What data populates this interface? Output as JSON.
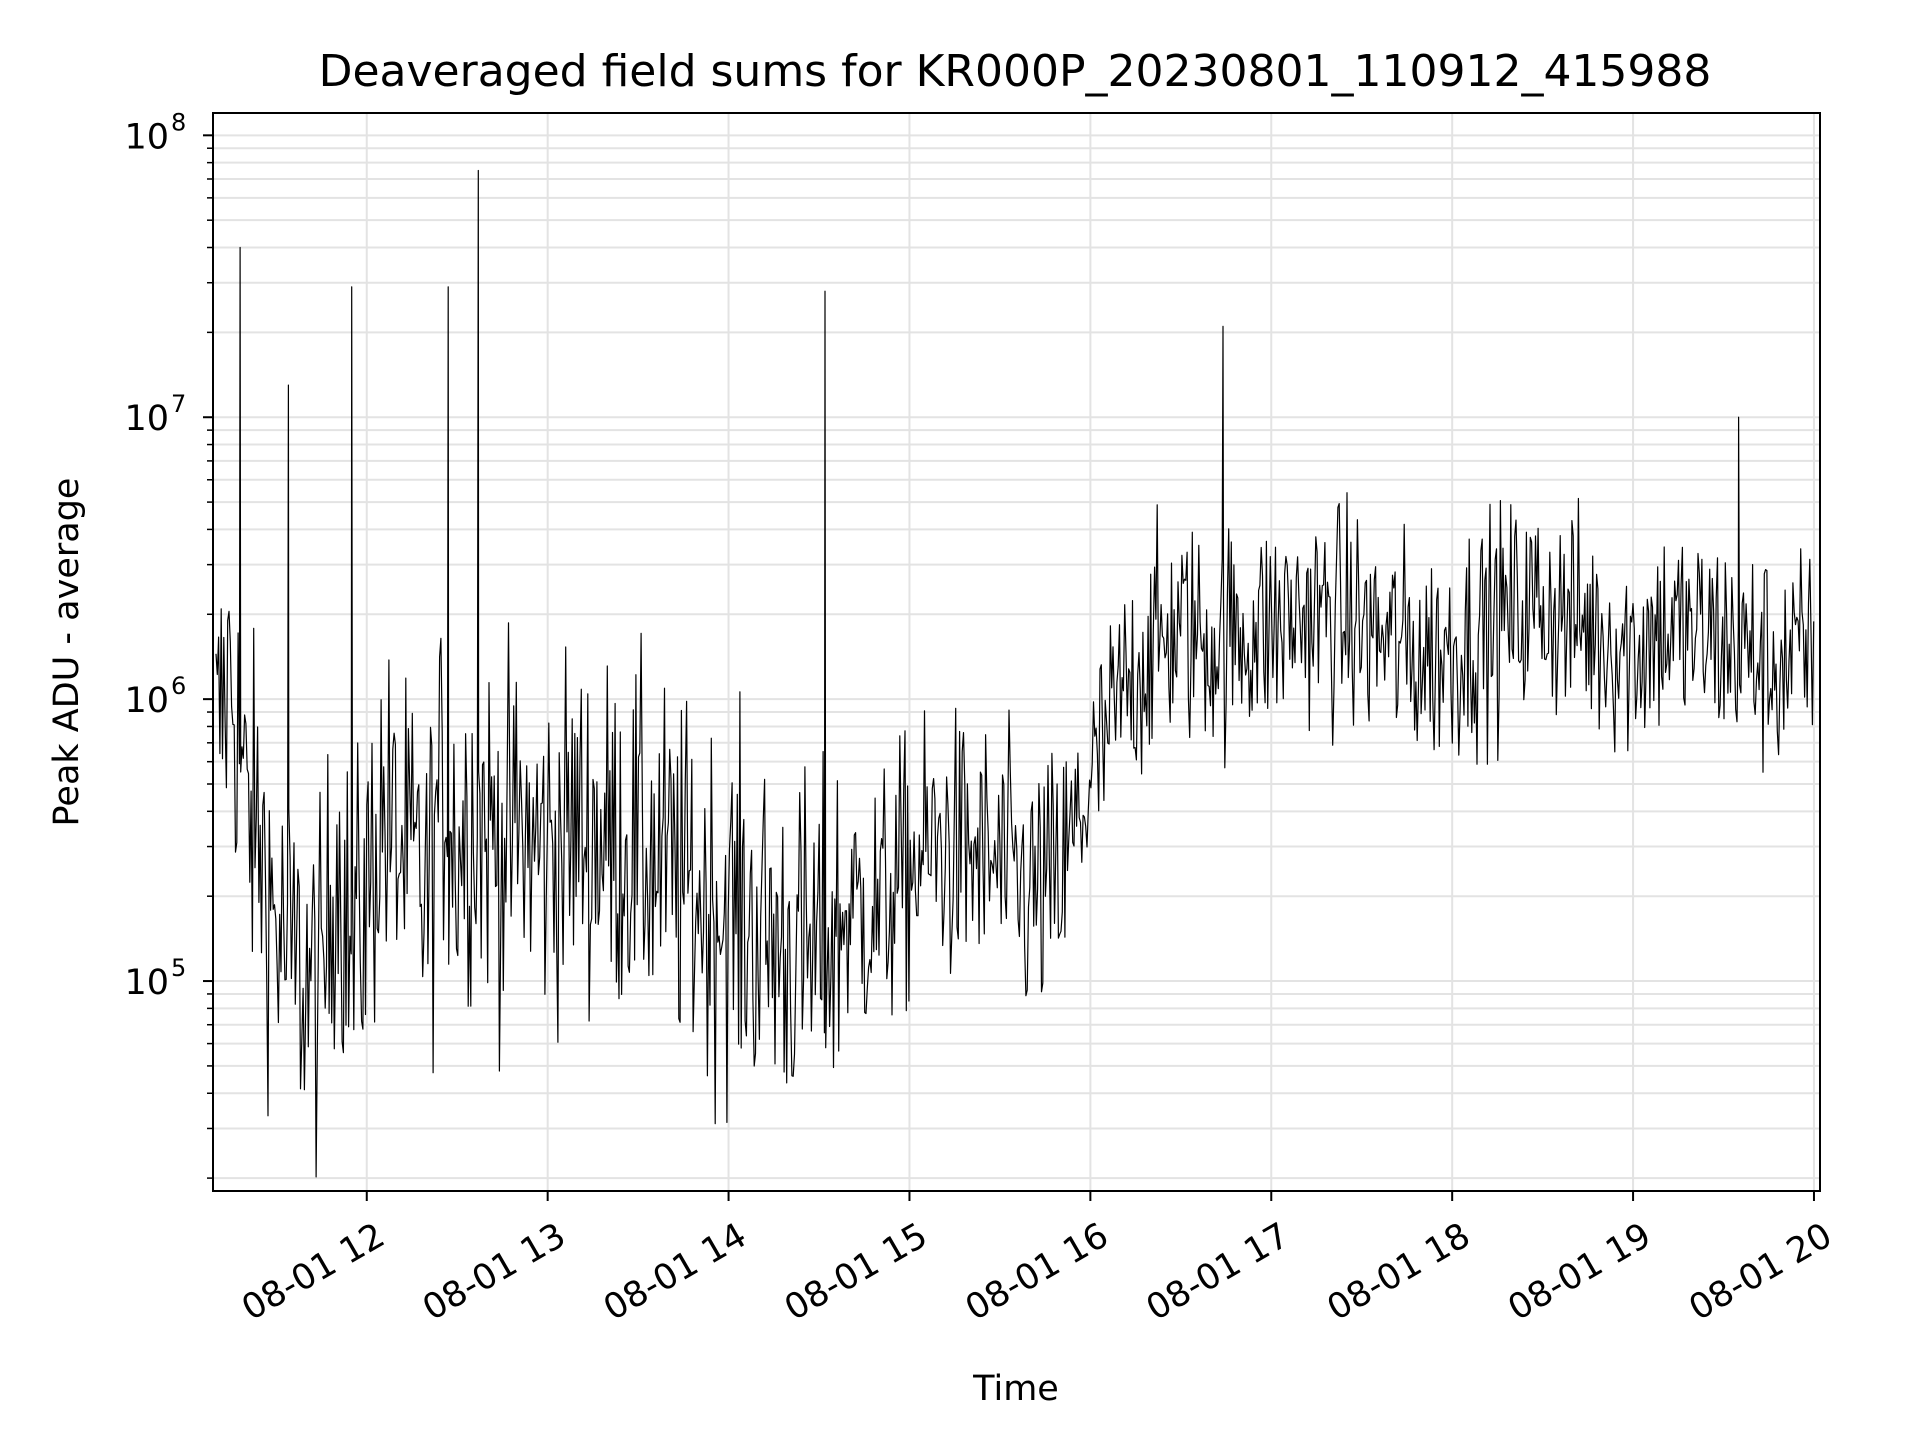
{
  "chart_data": {
    "type": "line",
    "title": "Deaveraged field sums for KR000P_20230801_110912_415988",
    "xlabel": "Time",
    "ylabel": "Peak ADU - average",
    "y_scale": "log",
    "ylim": [
      18000,
      120000000
    ],
    "xlim": [
      "2023-08-01 11:09",
      "2023-08-01 20:02"
    ],
    "x_ticks": [
      "08-01 12",
      "08-01 13",
      "08-01 14",
      "08-01 15",
      "08-01 16",
      "08-01 17",
      "08-01 18",
      "08-01 19",
      "08-01 20"
    ],
    "x_tick_times": [
      "2023-08-01 12:00",
      "2023-08-01 13:00",
      "2023-08-01 14:00",
      "2023-08-01 15:00",
      "2023-08-01 16:00",
      "2023-08-01 17:00",
      "2023-08-01 18:00",
      "2023-08-01 19:00",
      "2023-08-01 20:00"
    ],
    "y_ticks": [
      {
        "base": "10",
        "exp": "5",
        "value": 100000
      },
      {
        "base": "10",
        "exp": "6",
        "value": 1000000
      },
      {
        "base": "10",
        "exp": "7",
        "value": 10000000
      },
      {
        "base": "10",
        "exp": "8",
        "value": 100000000
      }
    ],
    "grid": true,
    "line_color": "#000000",
    "series": [
      {
        "x": [
          "2023-08-01 11:10",
          "2023-08-01 11:15",
          "2023-08-01 11:20",
          "2023-08-01 11:25",
          "2023-08-01 11:30",
          "2023-08-01 11:35",
          "2023-08-01 11:40",
          "2023-08-01 11:45",
          "2023-08-01 11:50",
          "2023-08-01 11:55",
          "2023-08-01 12:00",
          "2023-08-01 12:05",
          "2023-08-01 12:10",
          "2023-08-01 12:15",
          "2023-08-01 12:20",
          "2023-08-01 12:25",
          "2023-08-01 12:30",
          "2023-08-01 12:35",
          "2023-08-01 12:40",
          "2023-08-01 12:45",
          "2023-08-01 12:50",
          "2023-08-01 12:55",
          "2023-08-01 13:00",
          "2023-08-01 13:10",
          "2023-08-01 13:20",
          "2023-08-01 13:30",
          "2023-08-01 13:40",
          "2023-08-01 13:50",
          "2023-08-01 14:00",
          "2023-08-01 14:10",
          "2023-08-01 14:20",
          "2023-08-01 14:30",
          "2023-08-01 14:40",
          "2023-08-01 14:50",
          "2023-08-01 15:00",
          "2023-08-01 15:10",
          "2023-08-01 15:20",
          "2023-08-01 15:30",
          "2023-08-01 15:40",
          "2023-08-01 15:50",
          "2023-08-01 16:00",
          "2023-08-01 16:10",
          "2023-08-01 16:20",
          "2023-08-01 16:30",
          "2023-08-01 16:40",
          "2023-08-01 16:50",
          "2023-08-01 17:00",
          "2023-08-01 17:10",
          "2023-08-01 17:20",
          "2023-08-01 17:30",
          "2023-08-01 17:40",
          "2023-08-01 17:50",
          "2023-08-01 18:00",
          "2023-08-01 18:10",
          "2023-08-01 18:20",
          "2023-08-01 18:30",
          "2023-08-01 18:40",
          "2023-08-01 18:50",
          "2023-08-01 19:00",
          "2023-08-01 19:10",
          "2023-08-01 19:20",
          "2023-08-01 19:30",
          "2023-08-01 19:40",
          "2023-08-01 19:50",
          "2023-08-01 20:00"
        ],
        "y": [
          700000,
          1300000,
          400000,
          300000,
          150000,
          120000,
          100000,
          90000,
          300000,
          120000,
          200000,
          400000,
          300000,
          250000,
          200000,
          500000,
          300000,
          400000,
          350000,
          300000,
          350000,
          300000,
          300000,
          350000,
          320000,
          300000,
          250000,
          200000,
          180000,
          150000,
          130000,
          120000,
          180000,
          180000,
          250000,
          300000,
          280000,
          250000,
          200000,
          220000,
          500000,
          1000000,
          1500000,
          1800000,
          1600000,
          1700000,
          1800000,
          2000000,
          2000000,
          1800000,
          1600000,
          1400000,
          1500000,
          1800000,
          2000000,
          2200000,
          1900000,
          1700000,
          1500000,
          1800000,
          1700000,
          1600000,
          1400000,
          1300000,
          1500000
        ]
      }
    ],
    "spikes": [
      {
        "x": "2023-08-01 11:18",
        "y": 40000000
      },
      {
        "x": "2023-08-01 11:34",
        "y": 13000000
      },
      {
        "x": "2023-08-01 11:55",
        "y": 29000000
      },
      {
        "x": "2023-08-01 12:27",
        "y": 29000000
      },
      {
        "x": "2023-08-01 12:37",
        "y": 75000000
      },
      {
        "x": "2023-08-01 14:32",
        "y": 28000000
      },
      {
        "x": "2023-08-01 16:44",
        "y": 21000000
      },
      {
        "x": "2023-08-01 19:35",
        "y": 10000000
      }
    ]
  }
}
